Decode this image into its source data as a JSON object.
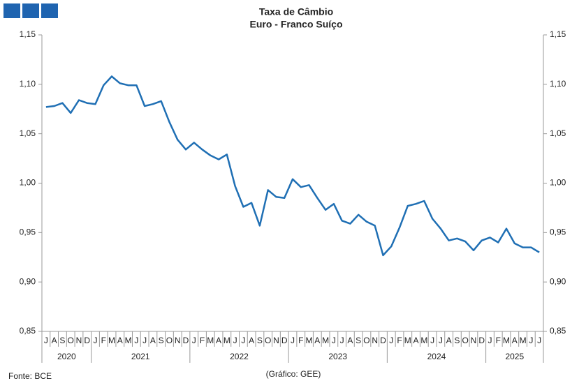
{
  "chart_data": {
    "type": "line",
    "title": [
      "Taxa de Câmbio",
      "Euro - Franco Suíço"
    ],
    "groups": [
      {
        "label": "2020",
        "categories": [
          "J",
          "A",
          "S",
          "O",
          "N",
          "D"
        ]
      },
      {
        "label": "2021",
        "categories": [
          "J",
          "F",
          "M",
          "A",
          "M",
          "J",
          "J",
          "A",
          "S",
          "O",
          "N",
          "D"
        ]
      },
      {
        "label": "2022",
        "categories": [
          "J",
          "F",
          "M",
          "A",
          "M",
          "J",
          "J",
          "A",
          "S",
          "O",
          "N",
          "D"
        ]
      },
      {
        "label": "2023",
        "categories": [
          "J",
          "F",
          "M",
          "A",
          "M",
          "J",
          "J",
          "A",
          "S",
          "O",
          "N",
          "D"
        ]
      },
      {
        "label": "2024",
        "categories": [
          "J",
          "F",
          "M",
          "A",
          "M",
          "J",
          "J",
          "A",
          "S",
          "O",
          "N",
          "D"
        ]
      },
      {
        "label": "2025",
        "categories": [
          "J",
          "F",
          "M",
          "A",
          "M",
          "J",
          "J"
        ]
      }
    ],
    "series": [
      {
        "color": "#1f6fb4",
        "values": [
          1.077,
          1.078,
          1.081,
          1.071,
          1.084,
          1.081,
          1.08,
          1.099,
          1.108,
          1.101,
          1.099,
          1.099,
          1.078,
          1.08,
          1.083,
          1.062,
          1.044,
          1.034,
          1.041,
          1.034,
          1.028,
          1.024,
          1.029,
          0.997,
          0.976,
          0.98,
          0.957,
          0.993,
          0.986,
          0.985,
          1.004,
          0.996,
          0.998,
          0.985,
          0.973,
          0.979,
          0.962,
          0.959,
          0.968,
          0.961,
          0.957,
          0.927,
          0.936,
          0.955,
          0.977,
          0.979,
          0.982,
          0.964,
          0.954,
          0.942,
          0.944,
          0.941,
          0.932,
          0.942,
          0.945,
          0.94,
          0.954,
          0.939,
          0.935,
          0.935,
          0.93
        ]
      }
    ],
    "ylim": [
      0.85,
      1.15
    ],
    "yticks": [
      {
        "value": 0.85,
        "label": "0,85"
      },
      {
        "value": 0.9,
        "label": "0,90"
      },
      {
        "value": 0.95,
        "label": "0,95"
      },
      {
        "value": 1.0,
        "label": "1,00"
      },
      {
        "value": 1.05,
        "label": "1,05"
      },
      {
        "value": 1.1,
        "label": "1,10"
      },
      {
        "value": 1.15,
        "label": "1,15"
      }
    ],
    "source": "Fonte: BCE",
    "credit": "(Gráfico: GEE)"
  }
}
